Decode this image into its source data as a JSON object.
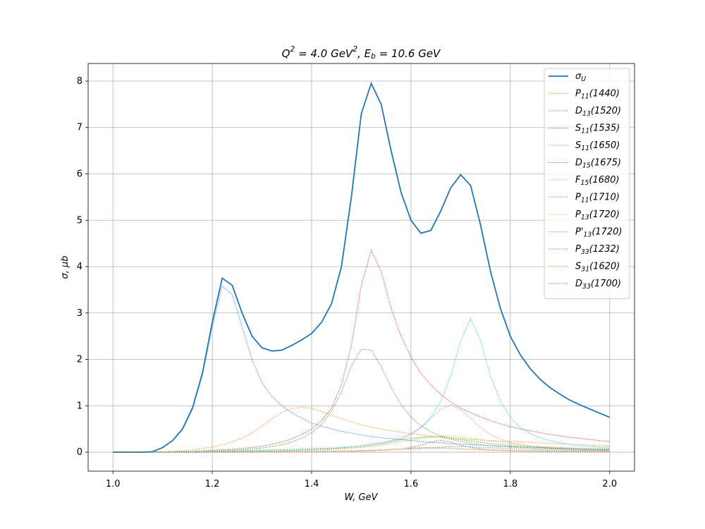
{
  "chart_data": {
    "type": "line",
    "title": "Q^{2} = 4.0 GeV^{2},  E_{b} = 10.6 GeV",
    "x_label": "W, GeV",
    "y_label": "σ, μb",
    "xlim": [
      0.95,
      2.05
    ],
    "ylim": [
      -0.41,
      8.38
    ],
    "xticks": [
      {
        "value": 1,
        "label": "1.0"
      },
      1.2,
      1.4,
      1.6,
      1.8,
      {
        "value": 2,
        "label": "2.0"
      }
    ],
    "yticks": [
      0,
      1,
      2,
      3,
      4,
      5,
      6,
      7,
      8
    ],
    "grid": true,
    "legend": "upper right",
    "x": [
      1.0,
      1.02,
      1.04,
      1.06,
      1.08,
      1.1,
      1.12,
      1.14,
      1.16,
      1.18,
      1.2,
      1.22,
      1.24,
      1.26,
      1.28,
      1.3,
      1.32,
      1.34,
      1.36,
      1.38,
      1.4,
      1.42,
      1.44,
      1.46,
      1.48,
      1.5,
      1.52,
      1.54,
      1.56,
      1.58,
      1.6,
      1.62,
      1.64,
      1.66,
      1.68,
      1.7,
      1.72,
      1.74,
      1.76,
      1.78,
      1.8,
      1.82,
      1.84,
      1.86,
      1.88,
      1.9,
      1.92,
      1.94,
      1.96,
      1.98,
      2.0
    ],
    "series": [
      {
        "name": "σ_{U}",
        "color": "#1f77b4",
        "style": "solid",
        "values": [
          0,
          0,
          0,
          0,
          0.01,
          0.1,
          0.25,
          0.5,
          0.95,
          1.7,
          2.8,
          3.75,
          3.6,
          3.0,
          2.5,
          2.25,
          2.18,
          2.2,
          2.3,
          2.42,
          2.56,
          2.8,
          3.2,
          4.0,
          5.5,
          7.3,
          7.95,
          7.5,
          6.5,
          5.6,
          5.0,
          4.72,
          4.78,
          5.2,
          5.7,
          5.98,
          5.75,
          4.9,
          3.9,
          3.1,
          2.5,
          2.1,
          1.8,
          1.57,
          1.39,
          1.25,
          1.12,
          1.02,
          0.93,
          0.84,
          0.75
        ]
      },
      {
        "name": "P_{11}(1440)",
        "color": "#ff7f0e",
        "style": "dotted",
        "values": [
          0,
          0,
          0,
          0,
          0.005,
          0.01,
          0.02,
          0.03,
          0.05,
          0.08,
          0.11,
          0.16,
          0.22,
          0.3,
          0.42,
          0.56,
          0.72,
          0.86,
          0.94,
          0.97,
          0.95,
          0.88,
          0.8,
          0.72,
          0.65,
          0.59,
          0.54,
          0.5,
          0.46,
          0.43,
          0.4,
          0.37,
          0.35,
          0.33,
          0.31,
          0.29,
          0.27,
          0.26,
          0.25,
          0.24,
          0.23,
          0.22,
          0.21,
          0.2,
          0.19,
          0.18,
          0.17,
          0.16,
          0.15,
          0.14,
          0.13
        ]
      },
      {
        "name": "D_{13}(1520)",
        "color": "#2ca02c",
        "style": "dotted",
        "values": [
          0,
          0,
          0,
          0,
          0.002,
          0.005,
          0.008,
          0.01,
          0.015,
          0.02,
          0.025,
          0.03,
          0.04,
          0.05,
          0.07,
          0.09,
          0.12,
          0.16,
          0.22,
          0.3,
          0.42,
          0.6,
          0.88,
          1.3,
          1.85,
          2.22,
          2.2,
          1.85,
          1.4,
          1.03,
          0.76,
          0.57,
          0.44,
          0.35,
          0.28,
          0.23,
          0.19,
          0.16,
          0.14,
          0.12,
          0.11,
          0.1,
          0.09,
          0.08,
          0.075,
          0.07,
          0.065,
          0.06,
          0.055,
          0.05,
          0.05
        ]
      },
      {
        "name": "S_{11}(1535)",
        "color": "#d62728",
        "style": "dotted",
        "values": [
          0,
          0,
          0,
          0,
          0.002,
          0.005,
          0.01,
          0.015,
          0.02,
          0.03,
          0.04,
          0.05,
          0.06,
          0.08,
          0.1,
          0.13,
          0.17,
          0.22,
          0.29,
          0.38,
          0.5,
          0.68,
          0.95,
          1.45,
          2.3,
          3.6,
          4.35,
          3.9,
          3.1,
          2.5,
          2.05,
          1.7,
          1.45,
          1.25,
          1.08,
          0.95,
          0.85,
          0.76,
          0.68,
          0.61,
          0.55,
          0.5,
          0.46,
          0.42,
          0.38,
          0.35,
          0.32,
          0.3,
          0.27,
          0.25,
          0.23
        ]
      },
      {
        "name": "S_{11}(1650)",
        "color": "#9467bd",
        "style": "dotted",
        "values": [
          0,
          0,
          0,
          0,
          0,
          0,
          0,
          0,
          0,
          0,
          0,
          0,
          0,
          0,
          0,
          0,
          0.005,
          0.005,
          0.01,
          0.01,
          0.015,
          0.02,
          0.02,
          0.025,
          0.03,
          0.035,
          0.04,
          0.05,
          0.055,
          0.065,
          0.07,
          0.08,
          0.085,
          0.085,
          0.08,
          0.07,
          0.06,
          0.05,
          0.045,
          0.04,
          0.035,
          0.03,
          0.03,
          0.025,
          0.025,
          0.02,
          0.02,
          0.02,
          0.015,
          0.015,
          0.015
        ]
      },
      {
        "name": "D_{15}(1675)",
        "color": "#8c564b",
        "style": "dotted",
        "values": [
          0,
          0,
          0,
          0,
          0,
          0,
          0,
          0,
          0,
          0,
          0.003,
          0.003,
          0.003,
          0.003,
          0.006,
          0.006,
          0.006,
          0.006,
          0.006,
          0.01,
          0.01,
          0.01,
          0.015,
          0.015,
          0.018,
          0.022,
          0.028,
          0.037,
          0.05,
          0.07,
          0.1,
          0.15,
          0.22,
          0.25,
          0.22,
          0.15,
          0.1,
          0.07,
          0.05,
          0.037,
          0.028,
          0.022,
          0.018,
          0.015,
          0.015,
          0.01,
          0.01,
          0.01,
          0.006,
          0.006,
          0.006
        ]
      },
      {
        "name": "F_{15}(1680)",
        "color": "#e377c2",
        "style": "dotted",
        "values": [
          0,
          0,
          0,
          0,
          0,
          0,
          0,
          0,
          0.01,
          0.01,
          0.01,
          0.01,
          0.01,
          0.01,
          0.025,
          0.025,
          0.025,
          0.025,
          0.025,
          0.04,
          0.046,
          0.053,
          0.062,
          0.073,
          0.087,
          0.105,
          0.13,
          0.16,
          0.21,
          0.28,
          0.38,
          0.53,
          0.73,
          0.92,
          1.02,
          0.92,
          0.73,
          0.53,
          0.38,
          0.28,
          0.21,
          0.16,
          0.13,
          0.105,
          0.087,
          0.073,
          0.062,
          0.053,
          0.046,
          0.04,
          0.036
        ]
      },
      {
        "name": "P_{11}(1710)",
        "color": "#7f7f7f",
        "style": "dotted",
        "values": [
          0,
          0,
          0,
          0,
          0,
          0,
          0,
          0,
          0,
          0,
          0,
          0,
          0,
          0,
          0,
          0.005,
          0.005,
          0.008,
          0.01,
          0.012,
          0.015,
          0.018,
          0.02,
          0.025,
          0.03,
          0.035,
          0.04,
          0.045,
          0.055,
          0.065,
          0.075,
          0.085,
          0.1,
          0.11,
          0.12,
          0.12,
          0.115,
          0.105,
          0.095,
          0.085,
          0.075,
          0.068,
          0.06,
          0.055,
          0.05,
          0.045,
          0.042,
          0.04,
          0.037,
          0.035,
          0.033
        ]
      },
      {
        "name": "P_{13}(1720)",
        "color": "#bcbd22",
        "style": "dotted",
        "values": [
          0,
          0,
          0,
          0,
          0,
          0,
          0,
          0,
          0,
          0,
          0.01,
          0.012,
          0.015,
          0.018,
          0.02,
          0.023,
          0.027,
          0.03,
          0.035,
          0.04,
          0.045,
          0.052,
          0.06,
          0.07,
          0.085,
          0.1,
          0.12,
          0.15,
          0.18,
          0.22,
          0.26,
          0.3,
          0.33,
          0.35,
          0.35,
          0.33,
          0.3,
          0.27,
          0.24,
          0.21,
          0.18,
          0.16,
          0.14,
          0.125,
          0.11,
          0.1,
          0.09,
          0.08,
          0.075,
          0.07,
          0.065
        ]
      },
      {
        "name": "P'_{13}(1720)",
        "color": "#17becf",
        "style": "dotted",
        "values": [
          0,
          0,
          0,
          0,
          0,
          0,
          0.01,
          0.01,
          0.015,
          0.02,
          0.02,
          0.025,
          0.03,
          0.035,
          0.04,
          0.045,
          0.05,
          0.055,
          0.06,
          0.07,
          0.08,
          0.085,
          0.09,
          0.105,
          0.12,
          0.14,
          0.17,
          0.2,
          0.25,
          0.31,
          0.4,
          0.53,
          0.75,
          1.1,
          1.65,
          2.4,
          2.88,
          2.4,
          1.65,
          1.1,
          0.75,
          0.53,
          0.4,
          0.31,
          0.25,
          0.2,
          0.17,
          0.14,
          0.12,
          0.105,
          0.09
        ]
      },
      {
        "name": "P_{33}(1232)",
        "color": "#1f77b4",
        "style": "dotted",
        "values": [
          0,
          0,
          0,
          0,
          0.01,
          0.1,
          0.24,
          0.48,
          0.92,
          1.65,
          2.7,
          3.58,
          3.4,
          2.7,
          2.0,
          1.5,
          1.2,
          1.0,
          0.85,
          0.73,
          0.63,
          0.56,
          0.5,
          0.45,
          0.41,
          0.37,
          0.34,
          0.31,
          0.29,
          0.27,
          0.25,
          0.23,
          0.21,
          0.2,
          0.18,
          0.17,
          0.16,
          0.15,
          0.14,
          0.13,
          0.12,
          0.115,
          0.11,
          0.1,
          0.095,
          0.09,
          0.085,
          0.08,
          0.075,
          0.07,
          0.07
        ]
      },
      {
        "name": "S_{31}(1620)",
        "color": "#ff7f0e",
        "style": "dotted",
        "values": [
          0,
          0,
          0,
          0,
          0,
          0,
          0,
          0,
          0,
          0,
          0,
          0,
          0,
          0,
          0,
          0.005,
          0.006,
          0.007,
          0.008,
          0.01,
          0.012,
          0.014,
          0.017,
          0.02,
          0.025,
          0.03,
          0.036,
          0.045,
          0.055,
          0.07,
          0.085,
          0.1,
          0.1,
          0.09,
          0.08,
          0.07,
          0.06,
          0.052,
          0.045,
          0.04,
          0.036,
          0.032,
          0.029,
          0.026,
          0.024,
          0.022,
          0.02,
          0.019,
          0.018,
          0.017,
          0.016
        ]
      },
      {
        "name": "D_{33}(1700)",
        "color": "#2ca02c",
        "style": "dotted",
        "values": [
          0,
          0,
          0,
          0,
          0,
          0,
          0,
          0,
          0,
          0,
          0.01,
          0.012,
          0.015,
          0.018,
          0.021,
          0.025,
          0.029,
          0.034,
          0.04,
          0.046,
          0.054,
          0.064,
          0.076,
          0.09,
          0.11,
          0.13,
          0.16,
          0.19,
          0.23,
          0.27,
          0.3,
          0.32,
          0.33,
          0.32,
          0.3,
          0.27,
          0.24,
          0.21,
          0.18,
          0.16,
          0.14,
          0.12,
          0.11,
          0.1,
          0.09,
          0.08,
          0.07,
          0.065,
          0.06,
          0.055,
          0.05
        ]
      }
    ]
  }
}
